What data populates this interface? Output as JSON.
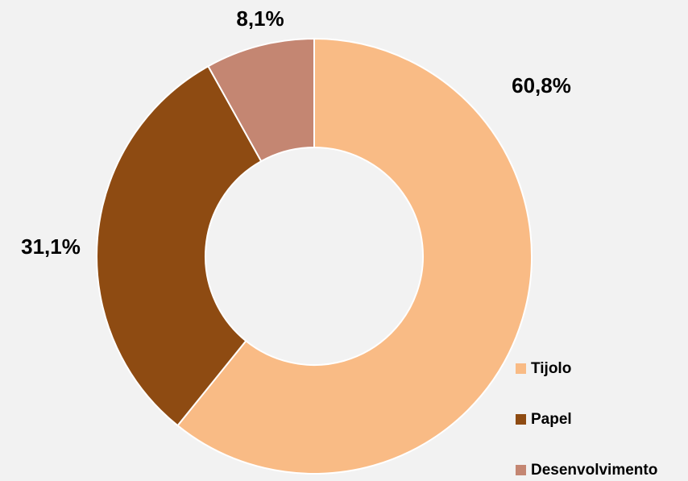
{
  "chart_data": {
    "type": "donut",
    "categories": [
      "Tijolo",
      "Papel",
      "Desenvolvimento"
    ],
    "values": [
      60.8,
      31.1,
      8.1
    ],
    "value_labels": [
      "60,8%",
      "31,1%",
      "8,1%"
    ],
    "colors": [
      "#f9bb85",
      "#8e4b12",
      "#c48672"
    ],
    "legend": "lower right"
  }
}
